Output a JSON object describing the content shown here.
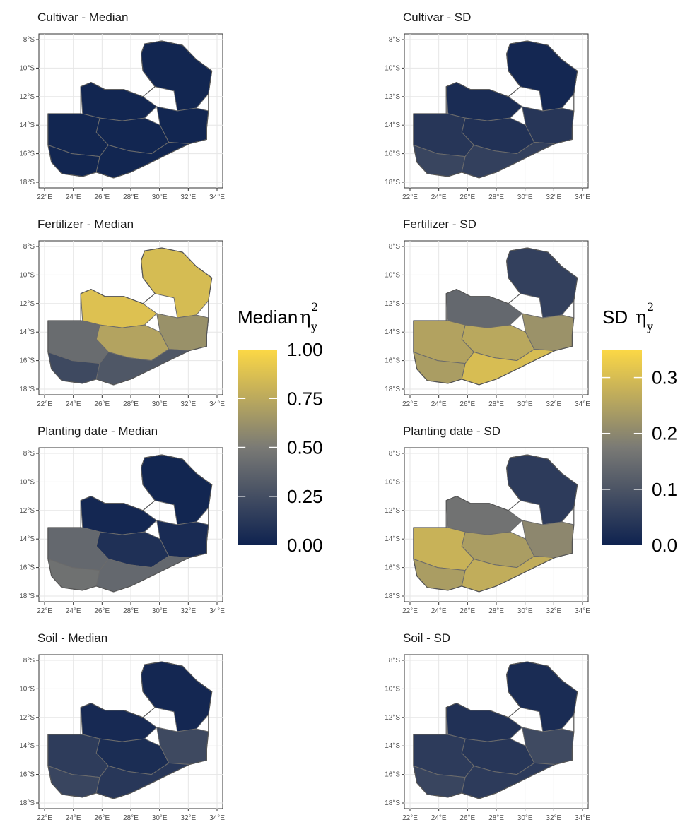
{
  "chart_data": [
    {
      "type": "map",
      "title": "Cultivar - Median",
      "scale": "median",
      "xlabel": "",
      "ylabel": "",
      "x_ticks": [
        "22°E",
        "24°E",
        "26°E",
        "28°E",
        "30°E",
        "32°E",
        "34°E"
      ],
      "y_ticks": [
        "8°S",
        "10°S",
        "12°S",
        "14°S",
        "16°S",
        "18°S"
      ],
      "xlim": [
        22,
        34
      ],
      "ylim": [
        -18,
        -8
      ],
      "regions": {
        "northeast": 0.02,
        "north": 0.02,
        "central": 0.02,
        "east": 0.02,
        "west": 0.02,
        "southwest": 0.02,
        "south": 0.02
      }
    },
    {
      "type": "map",
      "title": "Cultivar - SD",
      "scale": "sd",
      "xlabel": "",
      "ylabel": "",
      "x_ticks": [
        "22°E",
        "24°E",
        "26°E",
        "28°E",
        "30°E",
        "32°E",
        "34°E"
      ],
      "y_ticks": [
        "8°S",
        "10°S",
        "12°S",
        "14°S",
        "16°S",
        "18°S"
      ],
      "xlim": [
        22,
        34
      ],
      "ylim": [
        -18,
        -8
      ],
      "regions": {
        "northeast": 0.01,
        "north": 0.02,
        "central": 0.03,
        "east": 0.04,
        "west": 0.04,
        "southwest": 0.07,
        "south": 0.06
      }
    },
    {
      "type": "map",
      "title": "Fertilizer - Median",
      "scale": "median",
      "xlabel": "",
      "ylabel": "",
      "x_ticks": [
        "22°E",
        "24°E",
        "26°E",
        "28°E",
        "30°E",
        "32°E",
        "34°E"
      ],
      "y_ticks": [
        "8°S",
        "10°S",
        "12°S",
        "14°S",
        "16°S",
        "18°S"
      ],
      "xlim": [
        22,
        34
      ],
      "ylim": [
        -18,
        -8
      ],
      "regions": {
        "northeast": 0.85,
        "north": 0.88,
        "central": 0.72,
        "east": 0.62,
        "west": 0.42,
        "southwest": 0.22,
        "south": 0.3
      }
    },
    {
      "type": "map",
      "title": "Fertilizer - SD",
      "scale": "sd",
      "xlabel": "",
      "ylabel": "",
      "x_ticks": [
        "22°E",
        "24°E",
        "26°E",
        "28°E",
        "30°E",
        "32°E",
        "34°E"
      ],
      "y_ticks": [
        "8°S",
        "10°S",
        "12°S",
        "14°S",
        "16°S",
        "18°S"
      ],
      "xlim": [
        22,
        34
      ],
      "ylim": [
        -18,
        -8
      ],
      "regions": {
        "northeast": 0.06,
        "north": 0.14,
        "central": 0.26,
        "east": 0.22,
        "west": 0.25,
        "southwest": 0.24,
        "south": 0.3
      }
    },
    {
      "type": "map",
      "title": "Planting date - Median",
      "scale": "median",
      "xlabel": "",
      "ylabel": "",
      "x_ticks": [
        "22°E",
        "24°E",
        "26°E",
        "28°E",
        "30°E",
        "32°E",
        "34°E"
      ],
      "y_ticks": [
        "8°S",
        "10°S",
        "12°S",
        "14°S",
        "16°S",
        "18°S"
      ],
      "xlim": [
        22,
        34
      ],
      "ylim": [
        -18,
        -8
      ],
      "regions": {
        "northeast": 0.02,
        "north": 0.03,
        "central": 0.08,
        "east": 0.05,
        "west": 0.4,
        "southwest": 0.45,
        "south": 0.4
      }
    },
    {
      "type": "map",
      "title": "Planting date - SD",
      "scale": "sd",
      "xlabel": "",
      "ylabel": "",
      "x_ticks": [
        "22°E",
        "24°E",
        "26°E",
        "28°E",
        "30°E",
        "32°E",
        "34°E"
      ],
      "y_ticks": [
        "8°S",
        "10°S",
        "12°S",
        "14°S",
        "16°S",
        "18°S"
      ],
      "xlim": [
        22,
        34
      ],
      "ylim": [
        -18,
        -8
      ],
      "regions": {
        "northeast": 0.05,
        "north": 0.16,
        "central": 0.24,
        "east": 0.2,
        "west": 0.28,
        "southwest": 0.24,
        "south": 0.27
      }
    },
    {
      "type": "map",
      "title": "Soil - Median",
      "scale": "median",
      "xlabel": "",
      "ylabel": "",
      "x_ticks": [
        "22°E",
        "24°E",
        "26°E",
        "28°E",
        "30°E",
        "32°E",
        "34°E"
      ],
      "y_ticks": [
        "8°S",
        "10°S",
        "12°S",
        "14°S",
        "16°S",
        "18°S"
      ],
      "xlim": [
        22,
        34
      ],
      "ylim": [
        -18,
        -8
      ],
      "regions": {
        "northeast": 0.03,
        "north": 0.04,
        "central": 0.06,
        "east": 0.22,
        "west": 0.15,
        "southwest": 0.2,
        "south": 0.12
      }
    },
    {
      "type": "map",
      "title": "Soil - SD",
      "scale": "sd",
      "xlabel": "",
      "ylabel": "",
      "x_ticks": [
        "22°E",
        "24°E",
        "26°E",
        "28°E",
        "30°E",
        "32°E",
        "34°E"
      ],
      "y_ticks": [
        "8°S",
        "10°S",
        "12°S",
        "14°S",
        "16°S",
        "18°S"
      ],
      "xlim": [
        22,
        34
      ],
      "ylim": [
        -18,
        -8
      ],
      "regions": {
        "northeast": 0.02,
        "north": 0.03,
        "central": 0.04,
        "east": 0.08,
        "west": 0.05,
        "southwest": 0.07,
        "south": 0.05
      }
    }
  ],
  "legends": {
    "median": {
      "title": "Median",
      "symbol": "η",
      "sub": "y",
      "sup": "2",
      "ticks": [
        "1.00",
        "0.75",
        "0.50",
        "0.25",
        "0.00"
      ],
      "tick_values": [
        1.0,
        0.75,
        0.5,
        0.25,
        0.0
      ],
      "range": [
        0,
        1
      ]
    },
    "sd": {
      "title": "SD",
      "symbol": "η",
      "sub": "y",
      "sup": "2",
      "ticks": [
        "0.3",
        "0.2",
        "0.1",
        "0.0"
      ],
      "tick_values": [
        0.3,
        0.2,
        0.1,
        0.0
      ],
      "range": [
        0,
        0.35
      ]
    }
  },
  "colors": {
    "low": "#0e2250",
    "mid": "#7a7a75",
    "high": "#fcd845",
    "border": "#6b6b6b",
    "grid": "#e6e6e6"
  }
}
